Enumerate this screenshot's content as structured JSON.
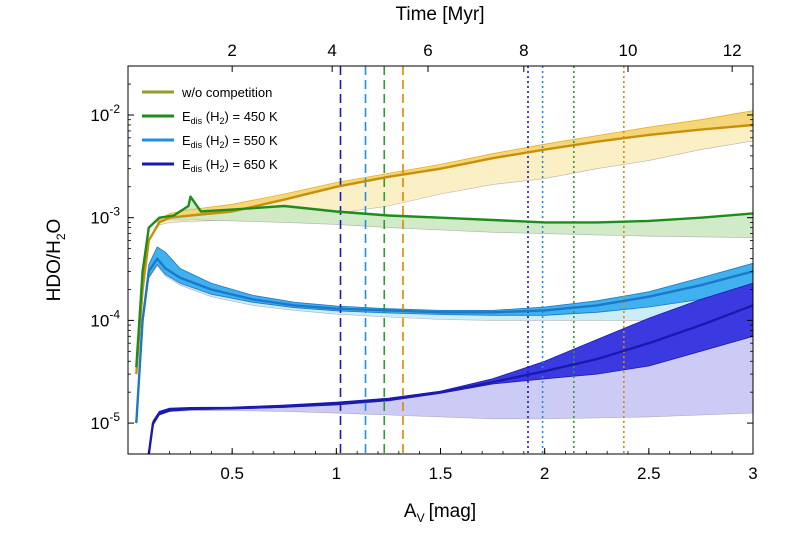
{
  "chart_data": {
    "type": "line",
    "xlabel": "A",
    "xlabel_sub": "V",
    "xlabel_unit": "[mag]",
    "ylabel": "HDO/H",
    "ylabel_sub": "2",
    "ylabel_tail": "O",
    "top_axis_label": "Time [Myr]",
    "xlim": [
      0.0,
      3.0
    ],
    "ylim": [
      5e-06,
      0.03
    ],
    "yscale": "log",
    "x_ticks": [
      0.5,
      1,
      1.5,
      2,
      2.5,
      3
    ],
    "x_tick_labels": [
      "0.5",
      "1",
      "1.5",
      "2",
      "2.5",
      "3"
    ],
    "top_ticks_av": [
      0.5,
      0.98,
      1.44,
      1.9,
      2.4,
      2.9
    ],
    "top_tick_labels": [
      "2",
      "4",
      "6",
      "8",
      "10",
      "12"
    ],
    "y_ticks": [
      1e-05,
      0.0001,
      0.001,
      0.01
    ],
    "y_tick_labels": [
      {
        "base": "10",
        "exp": "-5"
      },
      {
        "base": "10",
        "exp": "-4"
      },
      {
        "base": "10",
        "exp": "-3"
      },
      {
        "base": "10",
        "exp": "-2"
      }
    ],
    "legend": {
      "placement": "top-left",
      "entries": [
        {
          "key": "wo",
          "text": "w/o competition",
          "color": "#9a9a2a"
        },
        {
          "key": "450",
          "pre": "E",
          "sub1": "dis",
          "mid": " (H",
          "sub2": "2",
          "post": ") = 450 K",
          "color": "#1e8c1e"
        },
        {
          "key": "550",
          "pre": "E",
          "sub1": "dis",
          "mid": " (H",
          "sub2": "2",
          "post": ") = 550 K",
          "color": "#1e90e0"
        },
        {
          "key": "650",
          "pre": "E",
          "sub1": "dis",
          "mid": " (H",
          "sub2": "2",
          "post": ") = 650 K",
          "color": "#1a1ab0"
        }
      ]
    },
    "series": [
      {
        "key": "wo",
        "name": "w/o competition",
        "color": "#c8900a",
        "band_fill": "#f5d77a",
        "band_color": "#e6b02a",
        "shade_fill": "#fbeec3",
        "x": [
          0.04,
          0.07,
          0.1,
          0.15,
          0.2,
          0.3,
          0.5,
          0.75,
          1.0,
          1.25,
          1.5,
          1.75,
          2.0,
          2.25,
          2.5,
          2.75,
          3.0
        ],
        "y": [
          3e-05,
          0.0002,
          0.0006,
          0.0009,
          0.001,
          0.00105,
          0.00115,
          0.0015,
          0.002,
          0.0025,
          0.003,
          0.0038,
          0.0046,
          0.0055,
          0.0064,
          0.0072,
          0.008
        ],
        "band_hi": [
          3e-05,
          0.0002,
          0.0006,
          0.00095,
          0.0011,
          0.0012,
          0.00135,
          0.0017,
          0.0022,
          0.0027,
          0.0033,
          0.0042,
          0.0052,
          0.0063,
          0.0076,
          0.009,
          0.011
        ],
        "shade_lo": [
          3e-05,
          0.0002,
          0.0006,
          0.00085,
          0.0009,
          0.00092,
          0.00095,
          0.001,
          0.0011,
          0.0013,
          0.0017,
          0.0021,
          0.0024,
          0.003,
          0.0036,
          0.0046,
          0.0056
        ]
      },
      {
        "key": "450",
        "name": "Edis (H2) = 450 K",
        "color": "#1e8c1e",
        "shade_fill": "#cfe9c4",
        "x": [
          0.04,
          0.07,
          0.1,
          0.15,
          0.22,
          0.29,
          0.3,
          0.32,
          0.35,
          0.5,
          0.75,
          1.0,
          1.25,
          1.5,
          1.75,
          2.0,
          2.25,
          2.5,
          2.75,
          3.0
        ],
        "y": [
          3.5e-05,
          0.0003,
          0.0008,
          0.001,
          0.00105,
          0.0013,
          0.0016,
          0.0014,
          0.00115,
          0.0012,
          0.0013,
          0.00115,
          0.00105,
          0.001,
          0.00095,
          0.0009,
          0.0009,
          0.00093,
          0.001,
          0.0011
        ],
        "shade_lo": [
          3.5e-05,
          0.0003,
          0.0008,
          0.00095,
          0.00095,
          0.00095,
          0.00096,
          0.00096,
          0.00095,
          0.00093,
          0.0009,
          0.00086,
          0.0008,
          0.00076,
          0.00072,
          0.0007,
          0.00068,
          0.00066,
          0.00065,
          0.00064
        ]
      },
      {
        "key": "550",
        "name": "Edis (H2) = 550 K",
        "color": "#1e78c8",
        "band_fill": "#3fb0f0",
        "shade_fill": "#c9ecf8",
        "x": [
          0.04,
          0.07,
          0.1,
          0.14,
          0.18,
          0.25,
          0.4,
          0.6,
          0.8,
          1.0,
          1.25,
          1.5,
          1.75,
          2.0,
          2.25,
          2.5,
          2.75,
          3.0
        ],
        "y": [
          1e-05,
          0.0001,
          0.0003,
          0.0004,
          0.00032,
          0.00026,
          0.0002,
          0.00016,
          0.00014,
          0.00013,
          0.000125,
          0.00012,
          0.00012,
          0.000125,
          0.00014,
          0.00017,
          0.00022,
          0.0003
        ],
        "band_hi": [
          1e-05,
          0.00011,
          0.00035,
          0.00052,
          0.00046,
          0.00032,
          0.00023,
          0.000175,
          0.00015,
          0.000138,
          0.00013,
          0.000125,
          0.000125,
          0.000135,
          0.000155,
          0.00019,
          0.00026,
          0.00036
        ],
        "band_lo": [
          1e-05,
          9e-05,
          0.00026,
          0.00035,
          0.00028,
          0.00023,
          0.00018,
          0.00015,
          0.000133,
          0.000124,
          0.000118,
          0.000114,
          0.000112,
          0.000112,
          0.00012,
          0.000135,
          0.00016,
          0.0002
        ],
        "shade_lo": [
          1e-05,
          9e-05,
          0.00026,
          0.00034,
          0.00027,
          0.00022,
          0.00017,
          0.00014,
          0.000125,
          0.000115,
          0.000108,
          0.000102,
          0.0001,
          0.0001,
          0.0001,
          0.0001,
          0.0001,
          0.0001
        ]
      },
      {
        "key": "650",
        "name": "Edis (H2) = 650 K",
        "color": "#1a1ab0",
        "band_fill": "#3a3ae0",
        "shade_fill": "#c8c8f4",
        "x": [
          0.1,
          0.12,
          0.15,
          0.2,
          0.3,
          0.5,
          0.75,
          1.0,
          1.25,
          1.5,
          1.75,
          2.0,
          2.25,
          2.5,
          2.75,
          3.0
        ],
        "y": [
          5e-06,
          1e-05,
          1.25e-05,
          1.35e-05,
          1.38e-05,
          1.4e-05,
          1.45e-05,
          1.55e-05,
          1.7e-05,
          2e-05,
          2.5e-05,
          3.2e-05,
          4.2e-05,
          6e-05,
          9e-05,
          0.00014
        ],
        "band_hi": [
          5e-06,
          1.05e-05,
          1.3e-05,
          1.4e-05,
          1.42e-05,
          1.43e-05,
          1.5e-05,
          1.6e-05,
          1.75e-05,
          2.05e-05,
          2.7e-05,
          4e-05,
          6.5e-05,
          0.000105,
          0.00016,
          0.00023
        ],
        "band_lo": [
          5e-06,
          9.5e-06,
          1.2e-05,
          1.3e-05,
          1.35e-05,
          1.37e-05,
          1.42e-05,
          1.5e-05,
          1.65e-05,
          1.95e-05,
          2.4e-05,
          2.7e-05,
          3e-05,
          3.6e-05,
          5e-05,
          7e-05
        ],
        "shade_lo": [
          5e-06,
          9.5e-06,
          1.2e-05,
          1.3e-05,
          1.32e-05,
          1.32e-05,
          1.3e-05,
          1.25e-05,
          1.2e-05,
          1.15e-05,
          1.1e-05,
          1.1e-05,
          1.12e-05,
          1.15e-05,
          1.2e-05,
          1.25e-05
        ]
      }
    ],
    "vlines": [
      {
        "x": 1.02,
        "style": "dashed",
        "color": "#1a1ab0"
      },
      {
        "x": 1.14,
        "style": "dashed",
        "color": "#1e90e0"
      },
      {
        "x": 1.23,
        "style": "dashed",
        "color": "#2ca02c"
      },
      {
        "x": 1.32,
        "style": "dashed",
        "color": "#d98a00"
      },
      {
        "x": 1.92,
        "style": "dotted",
        "color": "#1a1ab0"
      },
      {
        "x": 1.99,
        "style": "dotted",
        "color": "#1e90e0"
      },
      {
        "x": 2.14,
        "style": "dotted",
        "color": "#2ca02c"
      },
      {
        "x": 2.38,
        "style": "dotted",
        "color": "#d98a00"
      }
    ]
  }
}
